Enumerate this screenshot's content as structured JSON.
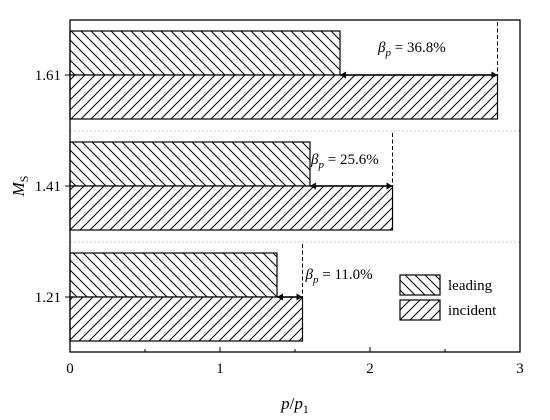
{
  "chart_data": {
    "type": "bar",
    "orientation": "horizontal",
    "xlabel": "p/p1",
    "ylabel": "MS",
    "xlim": [
      0,
      3
    ],
    "xticks": [
      0,
      1,
      2,
      3
    ],
    "grid": false,
    "legend_position": "bottom-right",
    "categories": [
      "1.21",
      "1.41",
      "1.61"
    ],
    "series": [
      {
        "name": "leading",
        "values": [
          1.38,
          1.6,
          1.8
        ],
        "hatch": "backslash"
      },
      {
        "name": "incident",
        "values": [
          1.55,
          2.15,
          2.85
        ],
        "hatch": "slash"
      }
    ],
    "annotations": [
      {
        "category": "1.21",
        "text": "βp = 11.0%",
        "symbol": "β",
        "subscript": "p",
        "rest": " = 11.0%"
      },
      {
        "category": "1.41",
        "text": "βp = 25.6%",
        "symbol": "β",
        "subscript": "p",
        "rest": " = 25.6%"
      },
      {
        "category": "1.61",
        "text": "βp = 36.8%",
        "symbol": "β",
        "subscript": "p",
        "rest": " = 36.8%"
      }
    ],
    "axis_title_x": {
      "main": "p",
      "slash": "/",
      "denom": "p",
      "denom_sub": "1"
    },
    "axis_title_y": {
      "main": "M",
      "sub": "S"
    }
  }
}
